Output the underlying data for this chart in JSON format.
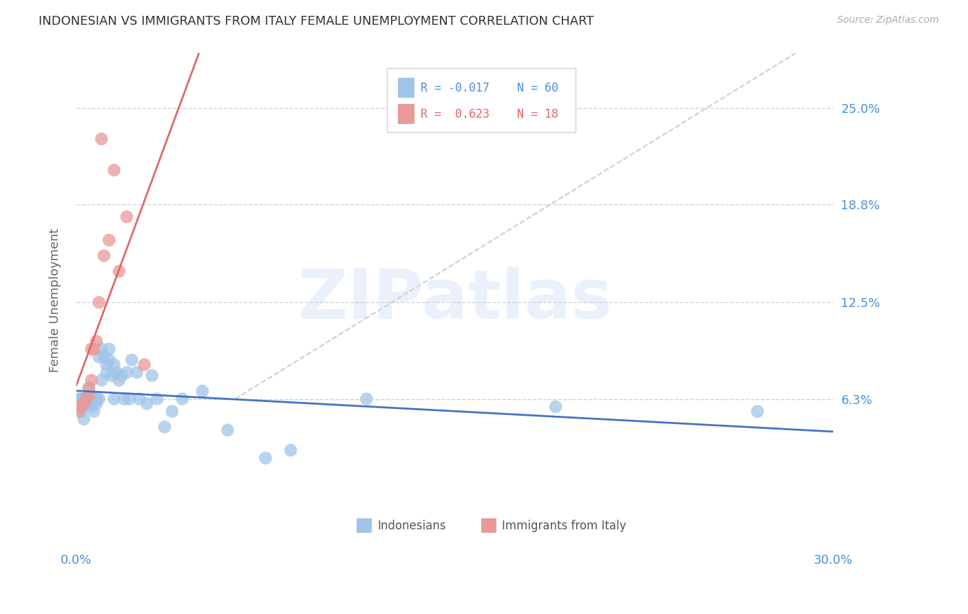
{
  "title": "INDONESIAN VS IMMIGRANTS FROM ITALY FEMALE UNEMPLOYMENT CORRELATION CHART",
  "source": "Source: ZipAtlas.com",
  "ylabel": "Female Unemployment",
  "xlim": [
    0.0,
    0.3
  ],
  "ylim": [
    -0.032,
    0.285
  ],
  "yticks": [
    0.063,
    0.125,
    0.188,
    0.25
  ],
  "ytick_labels": [
    "6.3%",
    "12.5%",
    "18.8%",
    "25.0%"
  ],
  "color_blue": "#9fc5e8",
  "color_pink": "#ea9999",
  "color_blue_line": "#4472c4",
  "color_pink_line": "#e06666",
  "color_axis_text": "#4a90d9",
  "watermark_text": "ZIPatlas",
  "indo_x": [
    0.001,
    0.002,
    0.002,
    0.002,
    0.003,
    0.003,
    0.003,
    0.003,
    0.004,
    0.004,
    0.004,
    0.005,
    0.005,
    0.005,
    0.005,
    0.005,
    0.006,
    0.006,
    0.006,
    0.006,
    0.007,
    0.007,
    0.007,
    0.008,
    0.008,
    0.008,
    0.009,
    0.009,
    0.01,
    0.01,
    0.011,
    0.012,
    0.012,
    0.013,
    0.013,
    0.014,
    0.015,
    0.015,
    0.016,
    0.017,
    0.018,
    0.019,
    0.02,
    0.021,
    0.022,
    0.024,
    0.025,
    0.028,
    0.03,
    0.032,
    0.035,
    0.038,
    0.042,
    0.05,
    0.06,
    0.075,
    0.085,
    0.115,
    0.19,
    0.27
  ],
  "indo_y": [
    0.063,
    0.063,
    0.063,
    0.055,
    0.063,
    0.063,
    0.058,
    0.05,
    0.063,
    0.063,
    0.063,
    0.063,
    0.063,
    0.063,
    0.063,
    0.07,
    0.063,
    0.063,
    0.058,
    0.06,
    0.063,
    0.063,
    0.055,
    0.063,
    0.063,
    0.06,
    0.09,
    0.063,
    0.095,
    0.075,
    0.09,
    0.085,
    0.08,
    0.088,
    0.095,
    0.078,
    0.085,
    0.063,
    0.08,
    0.075,
    0.078,
    0.063,
    0.08,
    0.063,
    0.088,
    0.08,
    0.063,
    0.06,
    0.078,
    0.063,
    0.045,
    0.055,
    0.063,
    0.068,
    0.043,
    0.025,
    0.03,
    0.063,
    0.058,
    0.055
  ],
  "italy_x": [
    0.001,
    0.002,
    0.003,
    0.004,
    0.005,
    0.005,
    0.006,
    0.006,
    0.007,
    0.008,
    0.009,
    0.01,
    0.011,
    0.013,
    0.015,
    0.017,
    0.02,
    0.027
  ],
  "italy_y": [
    0.055,
    0.058,
    0.06,
    0.063,
    0.065,
    0.07,
    0.075,
    0.095,
    0.095,
    0.1,
    0.125,
    0.13,
    0.155,
    0.165,
    0.21,
    0.145,
    0.18,
    0.085
  ],
  "italy_highx": 0.01,
  "italy_highy": 0.23
}
